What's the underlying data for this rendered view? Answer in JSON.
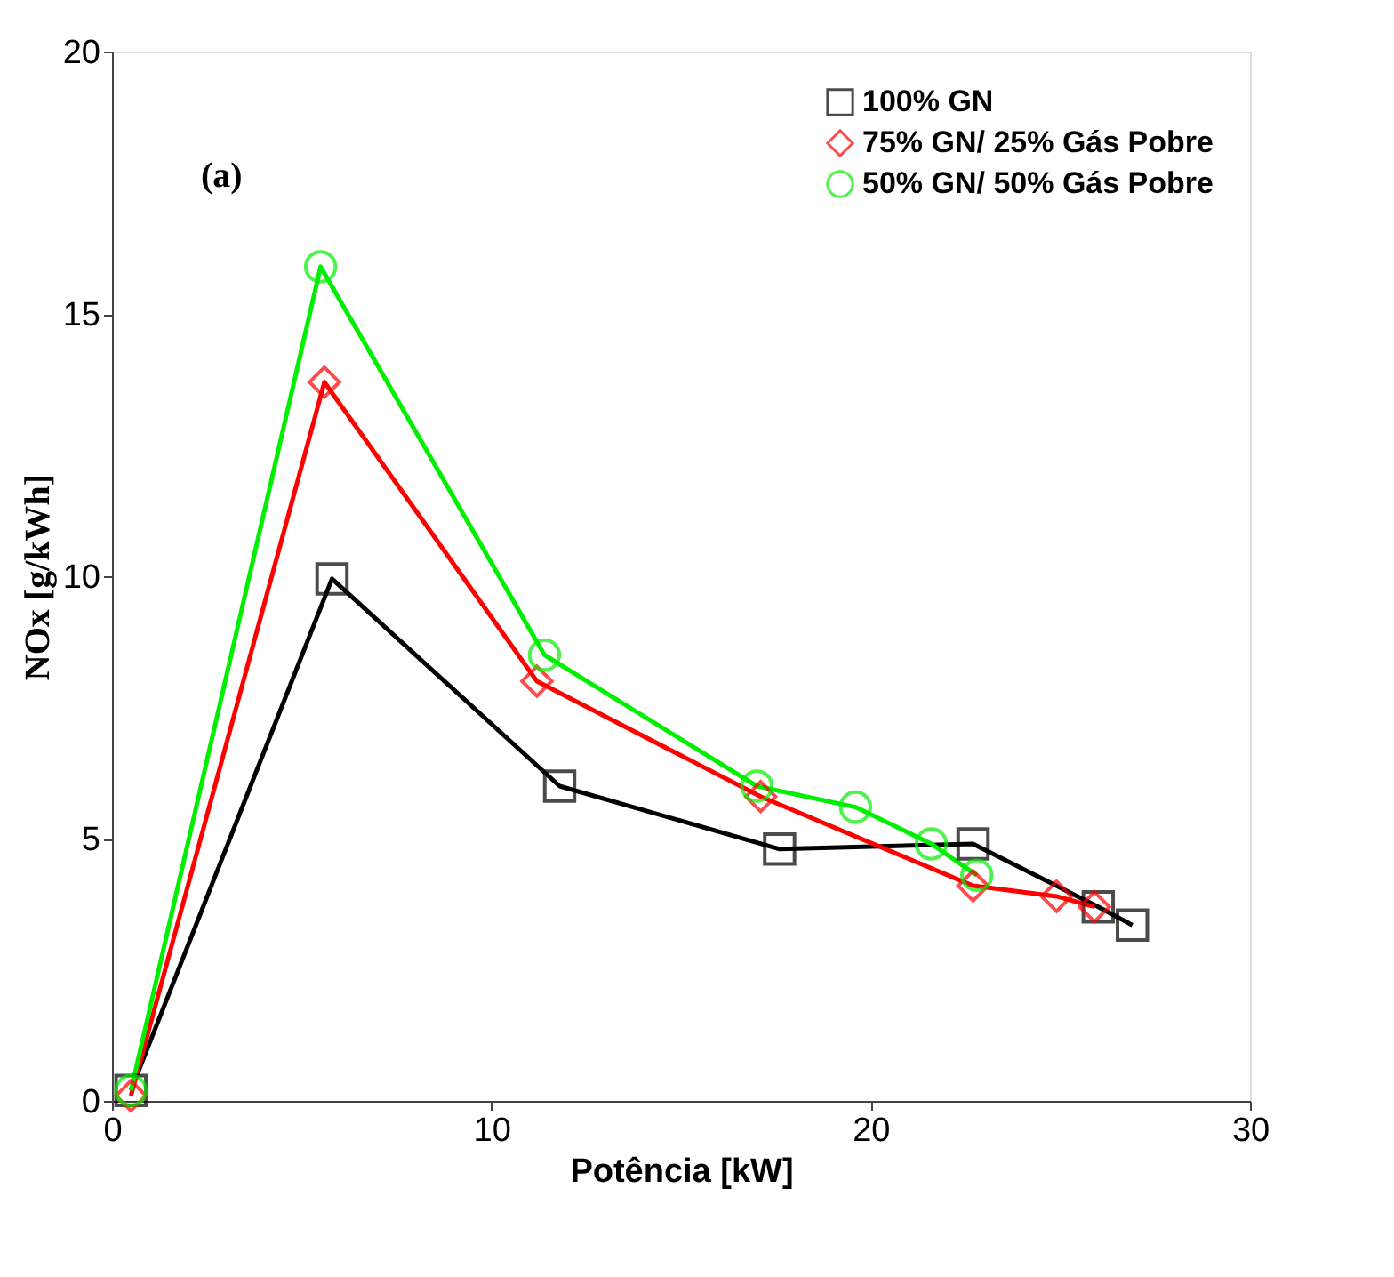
{
  "chart_data": {
    "type": "line",
    "xlabel": "Potência [kW]",
    "ylabel": "NOx [g/kWh]",
    "annotations": [
      "(a)"
    ],
    "xlim": [
      0,
      30
    ],
    "xticks": [
      0,
      10,
      20,
      30
    ],
    "ylim": [
      0,
      20
    ],
    "yticks": [
      0,
      5,
      10,
      15,
      20
    ],
    "grid": false,
    "legend": "top right",
    "line_style": "solid",
    "series": [
      {
        "name": "100% GN",
        "color": "#000000",
        "marker": "square",
        "x": [
          0.5,
          5.8,
          11.8,
          17.6,
          22.7,
          26.0,
          26.9
        ],
        "values": [
          0.2,
          9.95,
          6.0,
          4.8,
          4.9,
          3.7,
          3.35
        ]
      },
      {
        "name": "75% GN/ 25% Gás Pobre",
        "color": "#ff0000",
        "marker": "diamond",
        "x": [
          0.5,
          5.6,
          11.2,
          17.1,
          22.7,
          24.9,
          25.9
        ],
        "values": [
          0.1,
          13.7,
          8.0,
          5.8,
          4.1,
          3.9,
          3.7
        ]
      },
      {
        "name": "50% GN/ 50% Gás Pobre",
        "color": "#00ee00",
        "marker": "circle",
        "x": [
          0.5,
          5.5,
          11.4,
          17.0,
          19.6,
          21.6,
          22.8
        ],
        "values": [
          0.2,
          15.9,
          8.5,
          6.0,
          5.6,
          4.9,
          4.3
        ]
      }
    ]
  }
}
